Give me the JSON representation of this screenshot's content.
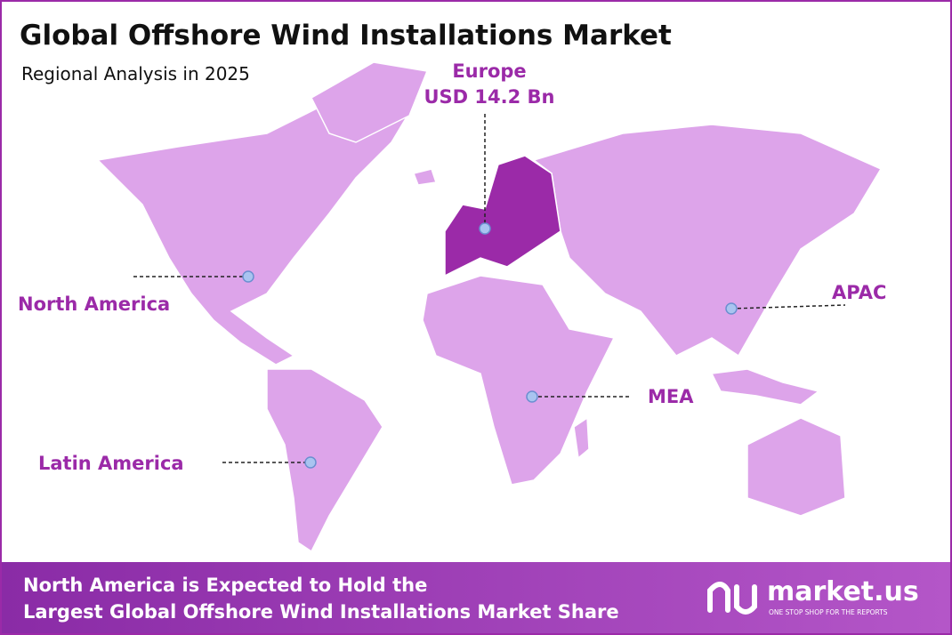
{
  "header": {
    "title": "Global Offshore Wind Installations Market",
    "subtitle": "Regional Analysis in 2025"
  },
  "regions": [
    {
      "name": "Europe",
      "value": "USD 14.2 Bn"
    },
    {
      "name": "North America"
    },
    {
      "name": "APAC"
    },
    {
      "name": "MEA"
    },
    {
      "name": "Latin America"
    }
  ],
  "footer": {
    "lines": [
      "North America is Expected to Hold the",
      "Largest Global Offshore Wind Installations Market Share"
    ],
    "brand": "market.us",
    "tagline": "ONE STOP SHOP FOR THE REPORTS"
  }
}
